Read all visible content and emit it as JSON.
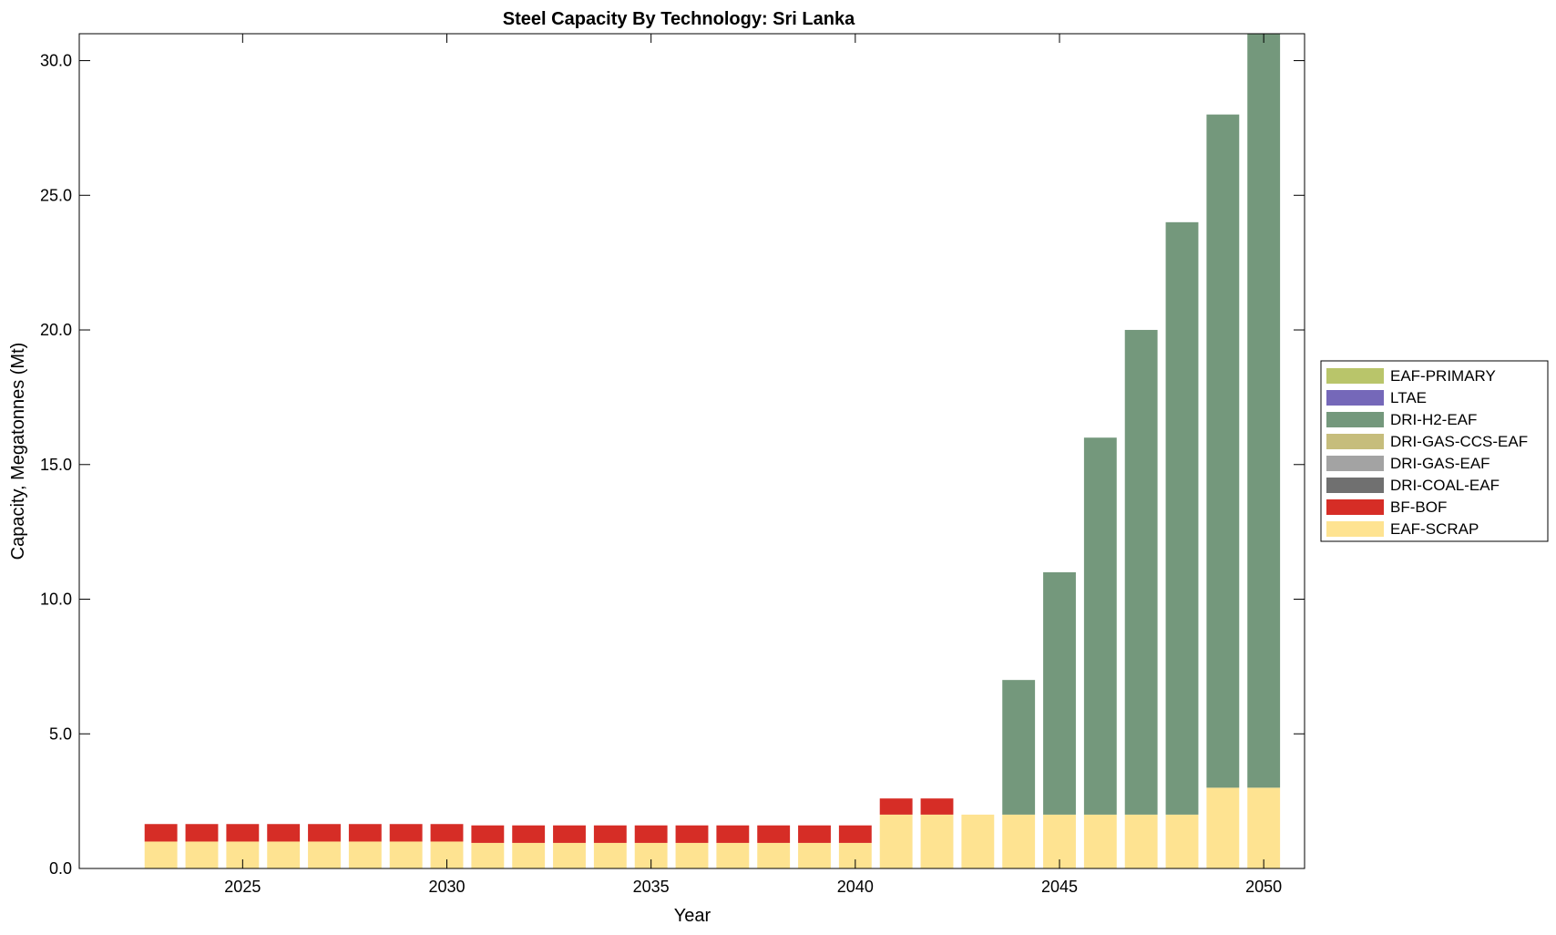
{
  "chart_data": {
    "type": "bar",
    "stacked": true,
    "title": "Steel Capacity By Technology: Sri Lanka",
    "xlabel": "Year",
    "ylabel": "Capacity, Megatonnes (Mt)",
    "xlim": [
      2021,
      2051
    ],
    "ylim": [
      0,
      31
    ],
    "xticks": [
      2025,
      2030,
      2035,
      2040,
      2045,
      2050
    ],
    "xtick_labels": [
      "2025",
      "2030",
      "2035",
      "2040",
      "2045",
      "2050"
    ],
    "yticks": [
      0,
      5,
      10,
      15,
      20,
      25,
      30
    ],
    "ytick_labels": [
      "0.0",
      "5.0",
      "10.0",
      "15.0",
      "20.0",
      "25.0",
      "30.0"
    ],
    "grid": false,
    "legend_position": "outside-right",
    "categories": [
      2023,
      2024,
      2025,
      2026,
      2027,
      2028,
      2029,
      2030,
      2031,
      2032,
      2033,
      2034,
      2035,
      2036,
      2037,
      2038,
      2039,
      2040,
      2041,
      2042,
      2043,
      2044,
      2045,
      2046,
      2047,
      2048,
      2049,
      2050
    ],
    "series": [
      {
        "name": "EAF-SCRAP",
        "color": "#fee391",
        "values": [
          1.0,
          1.0,
          1.0,
          1.0,
          1.0,
          1.0,
          1.0,
          1.0,
          0.95,
          0.95,
          0.95,
          0.95,
          0.95,
          0.95,
          0.95,
          0.95,
          0.95,
          0.95,
          2.0,
          2.0,
          2.0,
          2.0,
          2.0,
          2.0,
          2.0,
          2.0,
          3.0,
          3.0
        ]
      },
      {
        "name": "BF-BOF",
        "color": "#d62d26",
        "values": [
          0.65,
          0.65,
          0.65,
          0.65,
          0.65,
          0.65,
          0.65,
          0.65,
          0.65,
          0.65,
          0.65,
          0.65,
          0.65,
          0.65,
          0.65,
          0.65,
          0.65,
          0.65,
          0.6,
          0.6,
          0,
          0,
          0,
          0,
          0,
          0,
          0,
          0
        ]
      },
      {
        "name": "DRI-COAL-EAF",
        "color": "#707070",
        "values": [
          0,
          0,
          0,
          0,
          0,
          0,
          0,
          0,
          0,
          0,
          0,
          0,
          0,
          0,
          0,
          0,
          0,
          0,
          0,
          0,
          0,
          0,
          0,
          0,
          0,
          0,
          0,
          0
        ]
      },
      {
        "name": "DRI-GAS-EAF",
        "color": "#a3a3a3",
        "values": [
          0,
          0,
          0,
          0,
          0,
          0,
          0,
          0,
          0,
          0,
          0,
          0,
          0,
          0,
          0,
          0,
          0,
          0,
          0,
          0,
          0,
          0,
          0,
          0,
          0,
          0,
          0,
          0
        ]
      },
      {
        "name": "DRI-GAS-CCS-EAF",
        "color": "#c6bd7c",
        "values": [
          0,
          0,
          0,
          0,
          0,
          0,
          0,
          0,
          0,
          0,
          0,
          0,
          0,
          0,
          0,
          0,
          0,
          0,
          0,
          0,
          0,
          0,
          0,
          0,
          0,
          0,
          0,
          0
        ]
      },
      {
        "name": "DRI-H2-EAF",
        "color": "#74987c",
        "values": [
          0,
          0,
          0,
          0,
          0,
          0,
          0,
          0,
          0,
          0,
          0,
          0,
          0,
          0,
          0,
          0,
          0,
          0,
          0,
          0,
          0,
          5.0,
          9.0,
          14.0,
          18.0,
          22.0,
          25.0,
          28.0
        ]
      },
      {
        "name": "LTAE",
        "color": "#7568b9",
        "values": [
          0,
          0,
          0,
          0,
          0,
          0,
          0,
          0,
          0,
          0,
          0,
          0,
          0,
          0,
          0,
          0,
          0,
          0,
          0,
          0,
          0,
          0,
          0,
          0,
          0,
          0,
          0,
          0
        ]
      },
      {
        "name": "EAF-PRIMARY",
        "color": "#b9c56a",
        "values": [
          0,
          0,
          0,
          0,
          0,
          0,
          0,
          0,
          0,
          0,
          0,
          0,
          0,
          0,
          0,
          0,
          0,
          0,
          0,
          0,
          0,
          0,
          0,
          0,
          0,
          0,
          0,
          0
        ]
      }
    ],
    "legend_order": [
      "EAF-PRIMARY",
      "LTAE",
      "DRI-H2-EAF",
      "DRI-GAS-CCS-EAF",
      "DRI-GAS-EAF",
      "DRI-COAL-EAF",
      "BF-BOF",
      "EAF-SCRAP"
    ]
  }
}
